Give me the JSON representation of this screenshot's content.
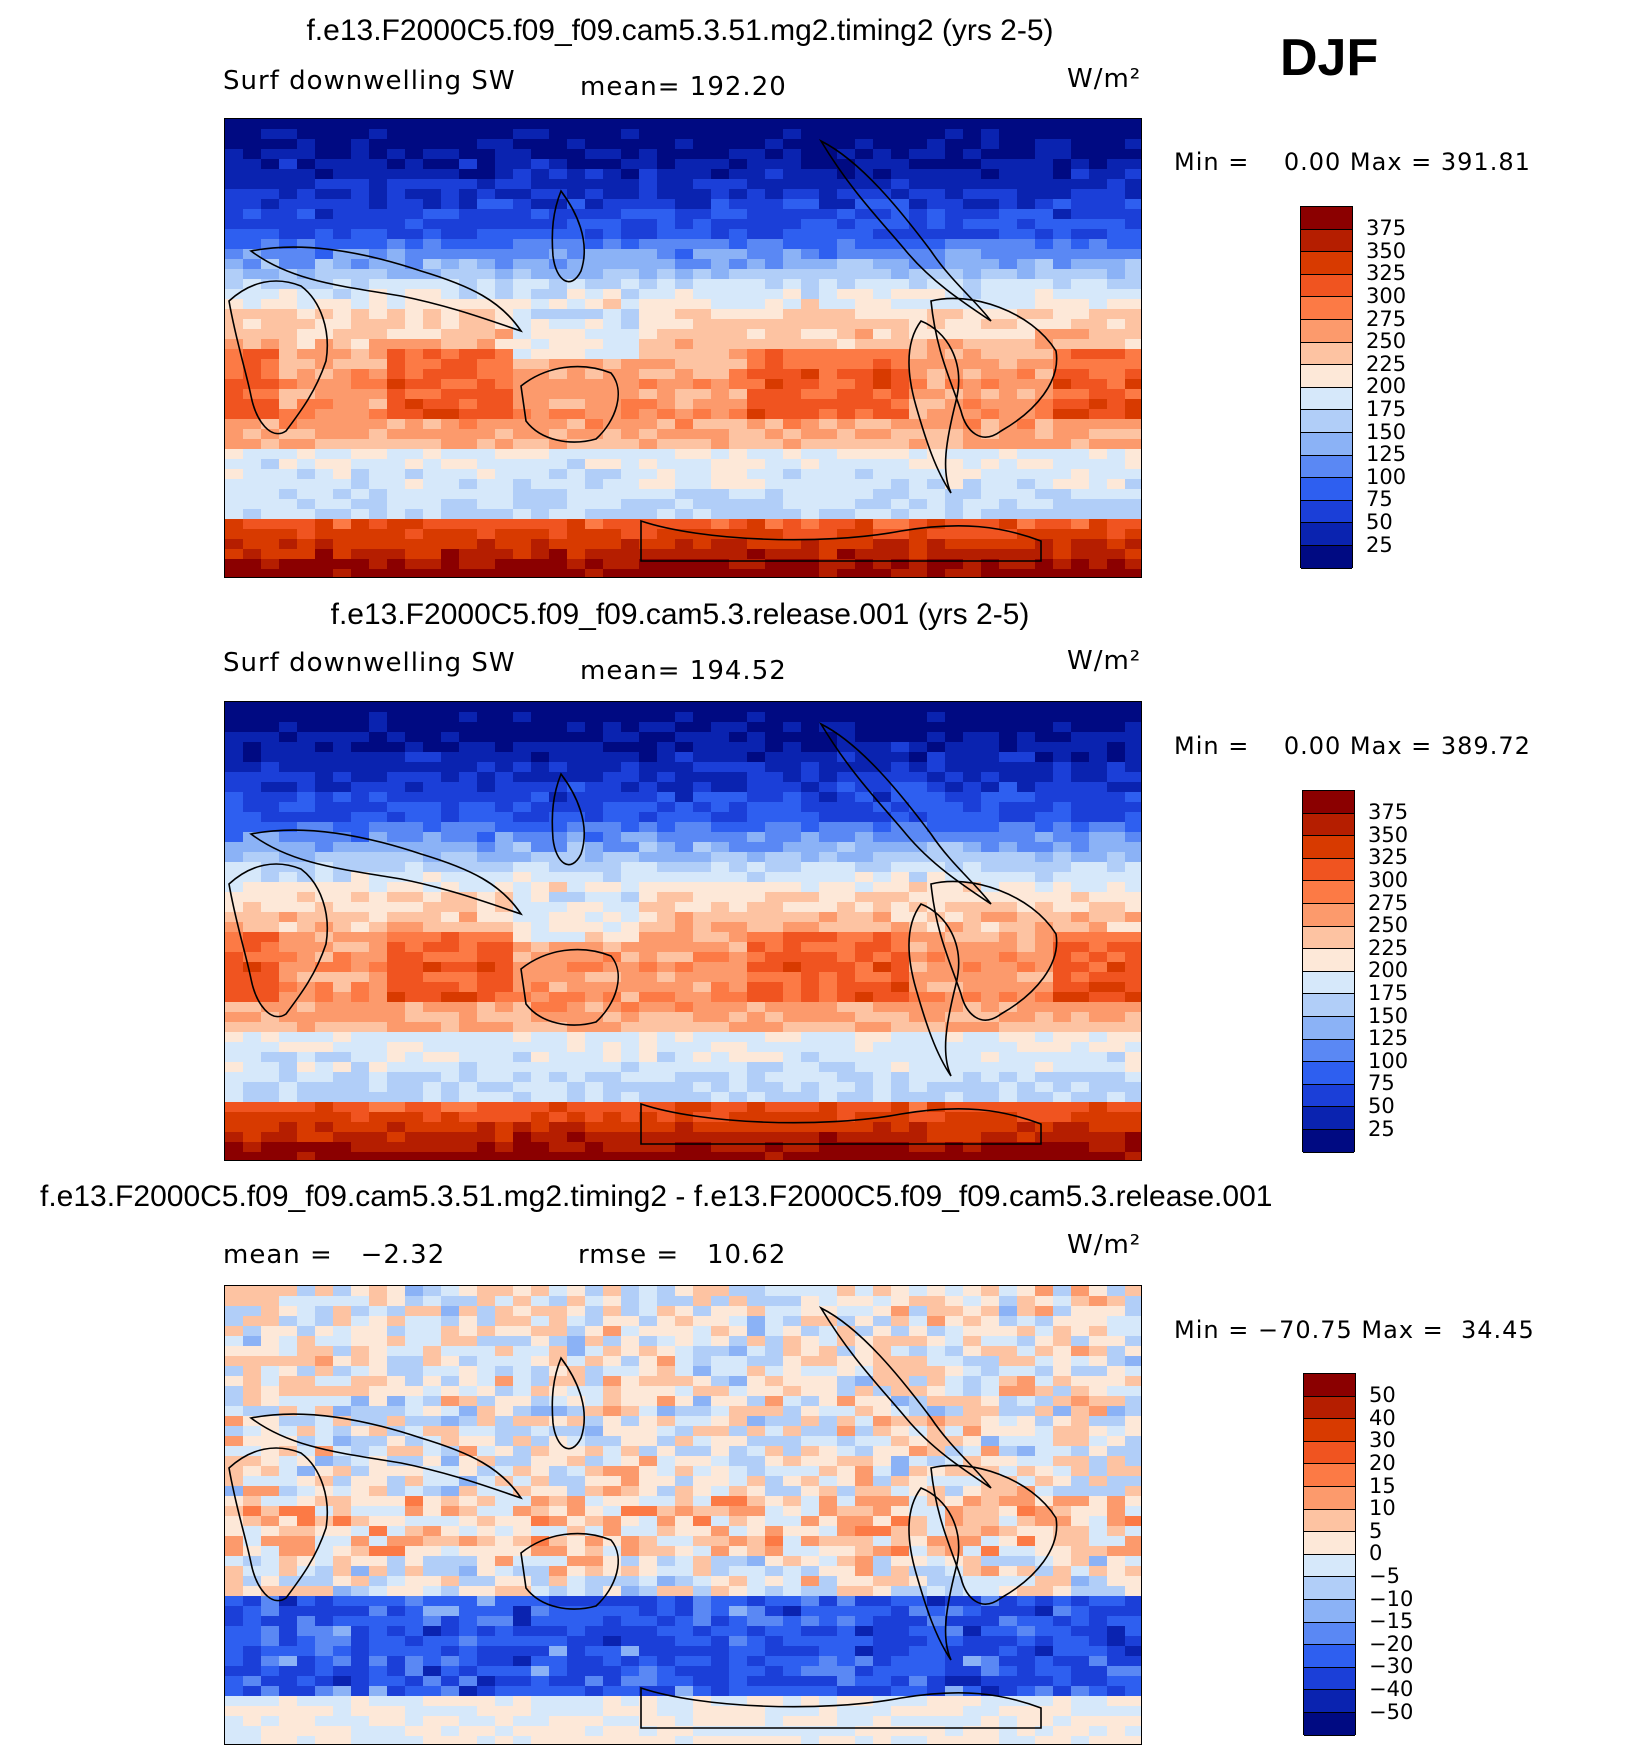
{
  "season": "DJF",
  "units": "W/m²",
  "chart_data": [
    {
      "type": "heatmap",
      "title": "f.e13.F2000C5.f09_f09.cam5.3.51.mg2.timing2 (yrs 2-5)",
      "variable": "Surf downwelling SW",
      "mean_label": "mean=",
      "mean": "192.20",
      "units": "W/m²",
      "min_max": "Min =    0.00 Max = 391.81",
      "min": 0.0,
      "max": 391.81,
      "colorbar_levels": [
        "375",
        "350",
        "325",
        "300",
        "275",
        "250",
        "225",
        "200",
        "175",
        "150",
        "125",
        "100",
        "75",
        "50",
        "25"
      ],
      "colorbar_colors": [
        "#8b0000",
        "#b51e00",
        "#d83a00",
        "#f05420",
        "#fc7a45",
        "#fc9a6c",
        "#fdc3a2",
        "#fde8d8",
        "#d6e8fa",
        "#b1cef8",
        "#8bb2f6",
        "#5a88f4",
        "#2e5ff0",
        "#1b3fd8",
        "#0a23b0",
        "#000a82"
      ]
    },
    {
      "type": "heatmap",
      "title": "f.e13.F2000C5.f09_f09.cam5.3.release.001 (yrs 2-5)",
      "variable": "Surf downwelling SW",
      "mean_label": "mean=",
      "mean": "194.52",
      "units": "W/m²",
      "min_max": "Min =    0.00 Max = 389.72",
      "min": 0.0,
      "max": 389.72,
      "colorbar_levels": [
        "375",
        "350",
        "325",
        "300",
        "275",
        "250",
        "225",
        "200",
        "175",
        "150",
        "125",
        "100",
        "75",
        "50",
        "25"
      ],
      "colorbar_colors": [
        "#8b0000",
        "#b51e00",
        "#d83a00",
        "#f05420",
        "#fc7a45",
        "#fc9a6c",
        "#fdc3a2",
        "#fde8d8",
        "#d6e8fa",
        "#b1cef8",
        "#8bb2f6",
        "#5a88f4",
        "#2e5ff0",
        "#1b3fd8",
        "#0a23b0",
        "#000a82"
      ]
    },
    {
      "type": "heatmap",
      "title": "f.e13.F2000C5.f09_f09.cam5.3.51.mg2.timing2 - f.e13.F2000C5.f09_f09.cam5.3.release.001",
      "mean_label": "mean =",
      "mean": "−2.32",
      "rmse_label": "rmse =",
      "rmse": "10.62",
      "units": "W/m²",
      "min_max": "Min = −70.75 Max =  34.45",
      "min": -70.75,
      "max": 34.45,
      "colorbar_levels": [
        "50",
        "40",
        "30",
        "20",
        "15",
        "10",
        "5",
        "0",
        "−5",
        "−10",
        "−15",
        "−20",
        "−30",
        "−40",
        "−50"
      ],
      "colorbar_colors": [
        "#8b0000",
        "#b51e00",
        "#d83a00",
        "#f05420",
        "#fc7a45",
        "#fc9a6c",
        "#fdc3a2",
        "#fde8d8",
        "#d6e8fa",
        "#b1cef8",
        "#8bb2f6",
        "#5a88f4",
        "#2e5ff0",
        "#1b3fd8",
        "#0a23b0",
        "#000a82"
      ]
    }
  ]
}
